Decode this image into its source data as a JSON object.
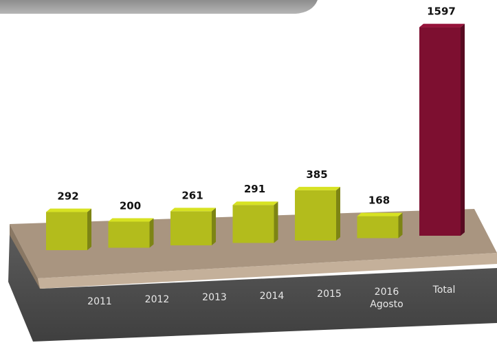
{
  "chart_data": {
    "type": "bar3d",
    "categories": [
      "2011",
      "2012",
      "2013",
      "2014",
      "2015",
      "2016 Agosto",
      "Total"
    ],
    "values": [
      292,
      200,
      261,
      291,
      385,
      168,
      1597
    ],
    "colors": [
      "#b3bc1c",
      "#b3bc1c",
      "#b3bc1c",
      "#b3bc1c",
      "#b3bc1c",
      "#b3bc1c",
      "#7d0f30"
    ]
  }
}
